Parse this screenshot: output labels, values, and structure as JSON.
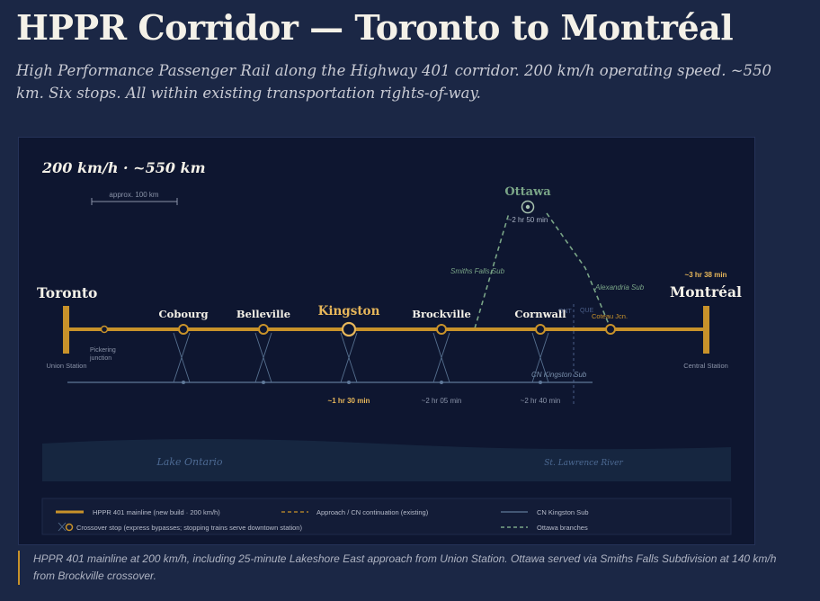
{
  "header": {
    "title": "HPPR Corridor — Toronto to Montréal",
    "subtitle": "High Performance Passenger Rail along the Highway 401 corridor. 200 km/h operating speed. ~550 km. Six stops. All within existing transportation rights-of-way."
  },
  "map": {
    "heading": "200 km/h · ~550 km",
    "scale_label": "approx. 100 km",
    "termini": {
      "toronto": {
        "name": "Toronto",
        "station": "Union Station"
      },
      "montreal": {
        "name": "Montréal",
        "station": "Central Station",
        "time": "~3 hr 38 min"
      }
    },
    "pickering": "Pickering junction",
    "stops": [
      {
        "name": "Cobourg",
        "time": ""
      },
      {
        "name": "Belleville",
        "time": ""
      },
      {
        "name": "Kingston",
        "time": "~1 hr 30 min"
      },
      {
        "name": "Brockville",
        "time": "~2 hr 05 min"
      },
      {
        "name": "Cornwall",
        "time": "~2 hr 40 min"
      }
    ],
    "ottawa": {
      "name": "Ottawa",
      "time": "~2 hr 50 min"
    },
    "coteau": "Coteau Jcn.",
    "smiths_falls": "Smiths Falls Sub",
    "alexandria": "Alexandria Sub",
    "que": "QUE",
    "ont": "ONT",
    "cn_kingston": "CN Kingston Sub",
    "lake": "Lake Ontario",
    "river": "St. Lawrence River",
    "legend": [
      {
        "key": "mainline",
        "label": "HPPR 401 mainline (new build · 200 km/h)"
      },
      {
        "key": "approach",
        "label": "Approach / CN continuation (existing)"
      },
      {
        "key": "cn",
        "label": "CN Kingston Sub"
      },
      {
        "key": "crossover",
        "label": "Crossover stop (express bypasses; stopping trains serve downtown station)"
      },
      {
        "key": "ottawa",
        "label": "Ottawa branches"
      }
    ],
    "colors": {
      "mainline": "#c8922a",
      "highlight": "#e6b65a",
      "ottawa": "#7aa587",
      "cn": "#5f7898",
      "water": "#162640"
    }
  },
  "caption": "HPPR 401 mainline at 200 km/h, including 25-minute Lakeshore East approach from Union Station. Ottawa served via Smiths Falls Subdivision at 140 km/h from Brockville crossover."
}
